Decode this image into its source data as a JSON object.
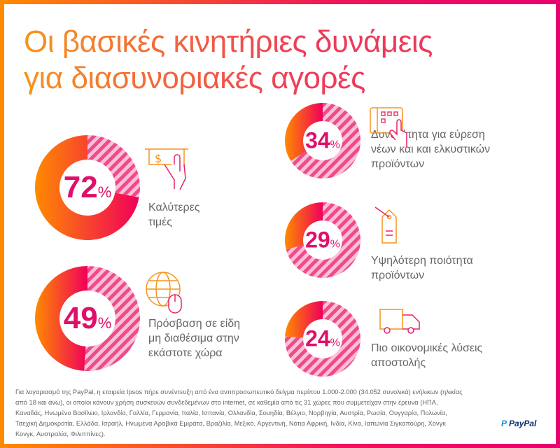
{
  "title": {
    "line1": "Οι βασικές κινητήριες δυνάμεις",
    "line2": "για διασυνοριακές αγορές"
  },
  "chart_data": {
    "type": "donut",
    "unit": "%",
    "items": [
      {
        "value": 72,
        "label_line1": "Καλύτερες",
        "label_line2": "τιμές",
        "label_line3": "",
        "icon": "hand-holding-dollar-card-icon"
      },
      {
        "value": 49,
        "label_line1": "Πρόσβαση σε είδη",
        "label_line2": "μη διαθέσιμα στην",
        "label_line3": "εκάστοτε χώρα",
        "icon": "globe-mouse-icon"
      },
      {
        "value": 34,
        "label_line1": "Δυνατότητα για εύρεση",
        "label_line2": "νέων και και ελκυστικών",
        "label_line3": "προϊόντων",
        "icon": "tablet-touch-icon"
      },
      {
        "value": 29,
        "label_line1": "Υψηλότερη ποιότητα",
        "label_line2": "προϊόντων",
        "label_line3": "",
        "icon": "price-tag-icon"
      },
      {
        "value": 24,
        "label_line1": "Πιο οικονομικές λύσεις",
        "label_line2": "αποστολής",
        "label_line3": "",
        "icon": "delivery-truck-icon"
      }
    ]
  },
  "colors": {
    "gradient_start": "#ff8a00",
    "gradient_end": "#f0005a",
    "hatch": "#f04a8a",
    "hatch_light": "#fbc1d6",
    "percent_text": "#e0106a"
  },
  "footnote": "Για λογαριασμό της PayPal, η εταιρεία Ipsos πήρε συνέντευξη από ένα αντιπροσωπευτικό δείγμα περίπου 1.000-2.000 (34.052 συνολικά) ενήλικων (ηλικίας από 18 και άνω), οι οποίοι κάνουν χρήση συσκευών συνδεδεμένων στο internet, σε καθεμία από τις 31 χώρες που συμμετείχαν στην έρευνα (ΗΠΑ, Καναδάς, Ηνωμένο Βασίλειο, Ιρλανδία, Γαλλία, Γερμανία, Ιταλία, Ισπανία, Ολλανδία, Σουηδία, Βέλγιο, Νορβηγία, Αυστρία, Ρωσία, Ουγγαρία, Πολωνία, Τσεχική Δημοκρατία, Ελλάδα, Ισραήλ, Ηνωμένα Αραβικά Εμιράτα, Βραζιλία, Μεξικό, Αργεντινή, Νότια Αφρική, Ινδία, Κίνα, Ιαπωνία Σιγκαπούρη, Χονγκ Κονγκ, Αυστραλία, Φιλιππίνες).",
  "logo": {
    "text": "PayPal"
  }
}
